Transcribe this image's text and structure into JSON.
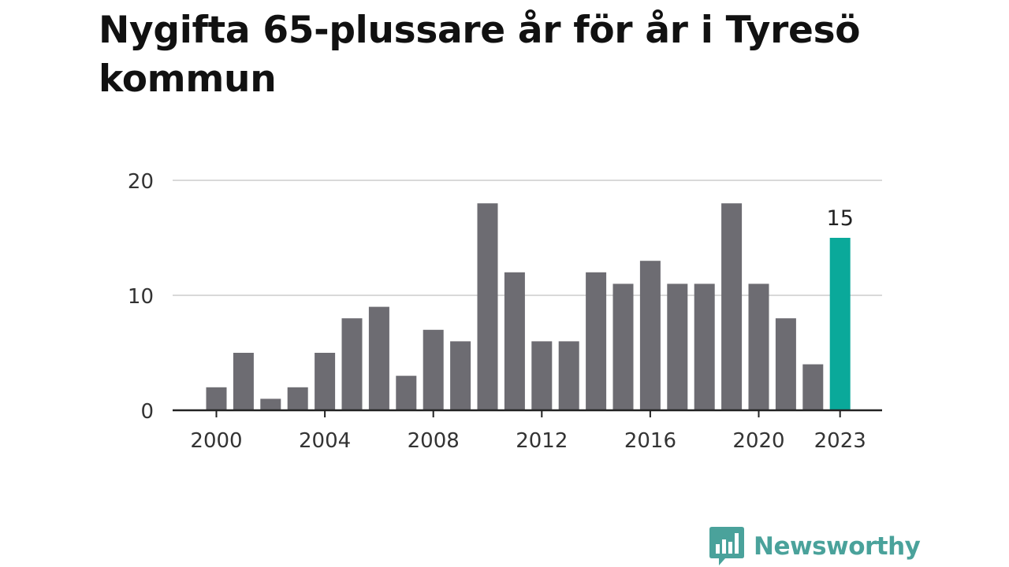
{
  "title": "Nygifta 65-plussare år för år i Tyresö kommun",
  "brand": {
    "name": "Newsworthy",
    "icon": "newsworthy-logo-icon"
  },
  "colors": {
    "bar": "#6d6c72",
    "highlight": "#0aa99a",
    "grid": "#d9d9d9",
    "axis": "#222222",
    "text": "#333333",
    "brand": "#4aa29b"
  },
  "chart_data": {
    "type": "bar",
    "title": "Nygifta 65-plussare år för år i Tyresö kommun",
    "xlabel": "",
    "ylabel": "",
    "x": [
      2000,
      2001,
      2002,
      2003,
      2004,
      2005,
      2006,
      2007,
      2008,
      2009,
      2010,
      2011,
      2012,
      2013,
      2014,
      2015,
      2016,
      2017,
      2018,
      2019,
      2020,
      2021,
      2022,
      2023
    ],
    "values": [
      2,
      5,
      1,
      2,
      5,
      8,
      9,
      3,
      7,
      6,
      18,
      12,
      6,
      6,
      12,
      11,
      13,
      11,
      11,
      18,
      11,
      8,
      4,
      15
    ],
    "ylim": [
      0,
      20
    ],
    "yticks": [
      0,
      10,
      20
    ],
    "xticks": [
      2000,
      2004,
      2008,
      2012,
      2016,
      2020,
      2023
    ],
    "highlight": {
      "x": 2023,
      "label": "15"
    },
    "grid": true
  }
}
